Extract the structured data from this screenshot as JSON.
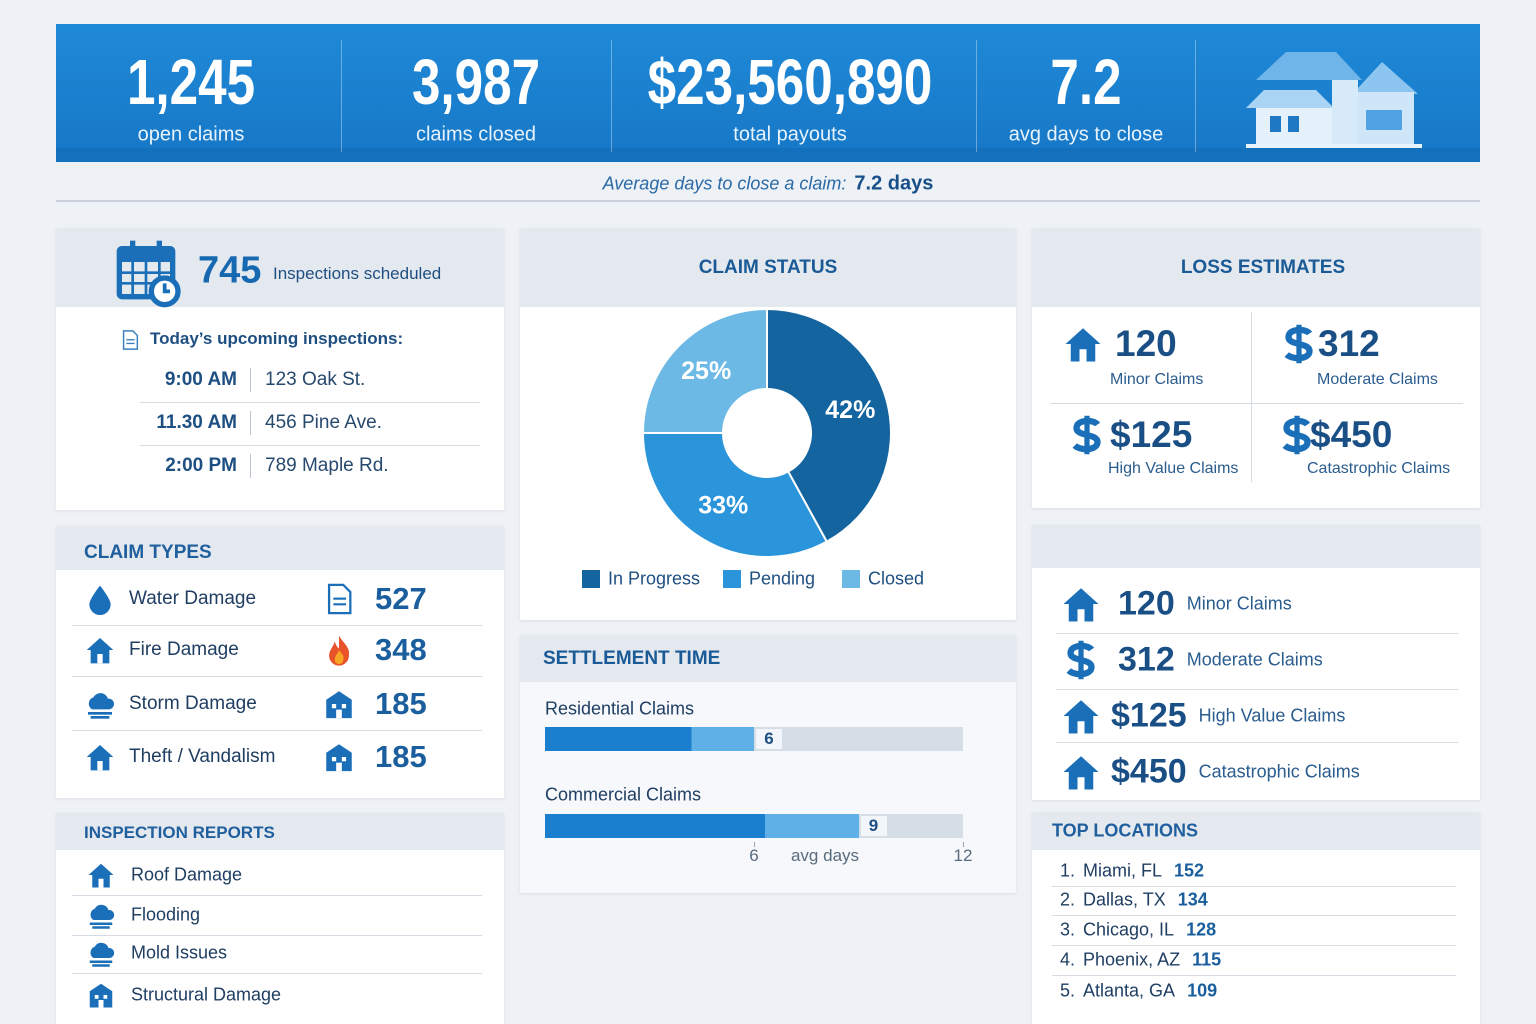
{
  "kpis": [
    {
      "value": "1,245",
      "label": "open claims"
    },
    {
      "value": "3,987",
      "label": "claims closed"
    },
    {
      "value": "$23,560,890",
      "label": "total payouts"
    },
    {
      "value": "7.2",
      "label": "avg days to close"
    }
  ],
  "summary": {
    "text": "Average days to close a claim:",
    "value": "7.2 days"
  },
  "inspections": {
    "count": "745",
    "label": "Inspections scheduled",
    "heading": "Today’s upcoming inspections:",
    "rows": [
      [
        "9:00 AM",
        "123 Oak St."
      ],
      [
        "11.30 AM",
        "456 Pine Ave."
      ],
      [
        "2:00 PM",
        "789 Maple Rd."
      ]
    ]
  },
  "claim_types": {
    "title": "CLAIM TYPES",
    "rows": [
      {
        "label": "Water Damage",
        "value": "527"
      },
      {
        "label": "Fire Damage",
        "value": "348"
      },
      {
        "label": "Storm Damage",
        "value": "185"
      },
      {
        "label": "Theft / Vandalism",
        "value": "185"
      }
    ]
  },
  "inspection_reports": {
    "title": "INSPECTION REPORTS",
    "items": [
      "Roof Damage",
      "Flooding",
      "Mold Issues",
      "Structural Damage"
    ]
  },
  "chart_data": [
    {
      "type": "pie",
      "title": "CLAIM STATUS",
      "categories": [
        "In Progress",
        "Pending",
        "Closed"
      ],
      "values": [
        42,
        33,
        25
      ],
      "value_labels": [
        "42%",
        "33%",
        "25%"
      ],
      "colors": [
        "#14649f",
        "#2b95db",
        "#6cb9e6"
      ]
    },
    {
      "type": "bar",
      "orientation": "horizontal",
      "title": "SETTLEMENT TIME",
      "categories": [
        "Residential Claims",
        "Commercial Claims"
      ],
      "values": [
        6,
        9
      ],
      "xlim": [
        0,
        12
      ],
      "xticks": [
        6,
        12
      ],
      "xlabel": "avg days",
      "color": "#1a7fcf"
    }
  ],
  "loss_estimates": {
    "title": "LOSS ESTIMATES",
    "cells": [
      {
        "value": "120",
        "label": "Minor Claims"
      },
      {
        "value": "312",
        "label": "Moderate Claims"
      },
      {
        "value": "$125",
        "label": "High Value Claims"
      },
      {
        "value": "$450",
        "label": "Catastrophic Claims"
      }
    ]
  },
  "loss_list": {
    "rows": [
      {
        "value": "120",
        "label": "Minor Claims"
      },
      {
        "value": "312",
        "label": "Moderate Claims"
      },
      {
        "value": "$125",
        "label": "High Value Claims"
      },
      {
        "value": "$450",
        "label": "Catastrophic Claims"
      }
    ]
  },
  "top_locations": {
    "title": "TOP LOCATIONS",
    "rows": [
      {
        "rank": "1.",
        "name": "Miami, FL",
        "value": "152"
      },
      {
        "rank": "2.",
        "name": "Dallas, TX",
        "value": "134"
      },
      {
        "rank": "3.",
        "name": "Chicago, IL",
        "value": "128"
      },
      {
        "rank": "4.",
        "name": "Phoenix, AZ",
        "value": "115"
      },
      {
        "rank": "5.",
        "name": "Atlanta, GA",
        "value": "109"
      }
    ]
  }
}
